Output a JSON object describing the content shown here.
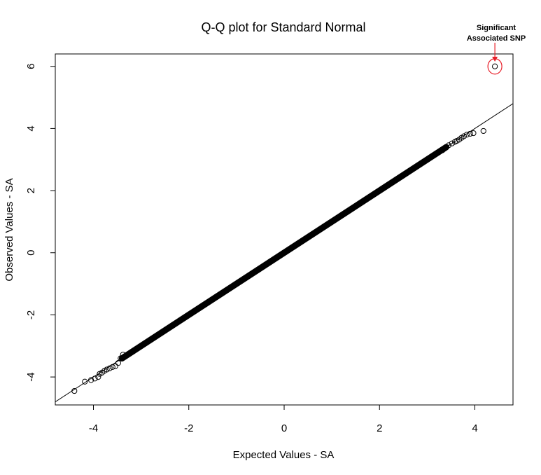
{
  "chart_data": {
    "type": "scatter",
    "title": "Q-Q plot for Standard Normal",
    "xlabel": "Expected Values - SA",
    "ylabel": "Observed Values - SA",
    "xlim": [
      -4.8,
      4.8
    ],
    "ylim": [
      -4.9,
      6.4
    ],
    "xticks": [
      -4,
      -2,
      0,
      2,
      4
    ],
    "yticks": [
      -4,
      -2,
      0,
      2,
      4,
      6
    ],
    "xtick_labels": [
      "-4",
      "-2",
      "0",
      "2",
      "4"
    ],
    "ytick_labels": [
      "-4",
      "-2",
      "0",
      "2",
      "4",
      "6"
    ],
    "grid": false,
    "reference_line": {
      "slope": 1,
      "intercept": 0
    },
    "annotation": {
      "line1": "Significant",
      "line2": "Associated SNP",
      "point": {
        "x": 4.42,
        "y": 6.0
      },
      "color": "#e8202a"
    },
    "dense_band": {
      "x_start": -3.4,
      "x_end": 3.4
    },
    "points": [
      {
        "x": -4.4,
        "y": -4.45
      },
      {
        "x": -4.18,
        "y": -4.15
      },
      {
        "x": -4.05,
        "y": -4.1
      },
      {
        "x": -3.97,
        "y": -4.05
      },
      {
        "x": -3.9,
        "y": -4.0
      },
      {
        "x": -3.87,
        "y": -3.9
      },
      {
        "x": -3.82,
        "y": -3.86
      },
      {
        "x": -3.77,
        "y": -3.8
      },
      {
        "x": -3.72,
        "y": -3.76
      },
      {
        "x": -3.66,
        "y": -3.72
      },
      {
        "x": -3.6,
        "y": -3.68
      },
      {
        "x": -3.54,
        "y": -3.65
      },
      {
        "x": -3.48,
        "y": -3.55
      },
      {
        "x": -3.43,
        "y": -3.4
      },
      {
        "x": -3.38,
        "y": -3.28
      },
      {
        "x": 3.32,
        "y": 3.3
      },
      {
        "x": 3.38,
        "y": 3.38
      },
      {
        "x": 3.45,
        "y": 3.46
      },
      {
        "x": 3.52,
        "y": 3.52
      },
      {
        "x": 3.58,
        "y": 3.57
      },
      {
        "x": 3.62,
        "y": 3.6
      },
      {
        "x": 3.67,
        "y": 3.64
      },
      {
        "x": 3.72,
        "y": 3.7
      },
      {
        "x": 3.77,
        "y": 3.75
      },
      {
        "x": 3.83,
        "y": 3.8
      },
      {
        "x": 3.9,
        "y": 3.83
      },
      {
        "x": 3.97,
        "y": 3.85
      },
      {
        "x": 4.18,
        "y": 3.92
      },
      {
        "x": 4.42,
        "y": 6.0
      }
    ]
  }
}
